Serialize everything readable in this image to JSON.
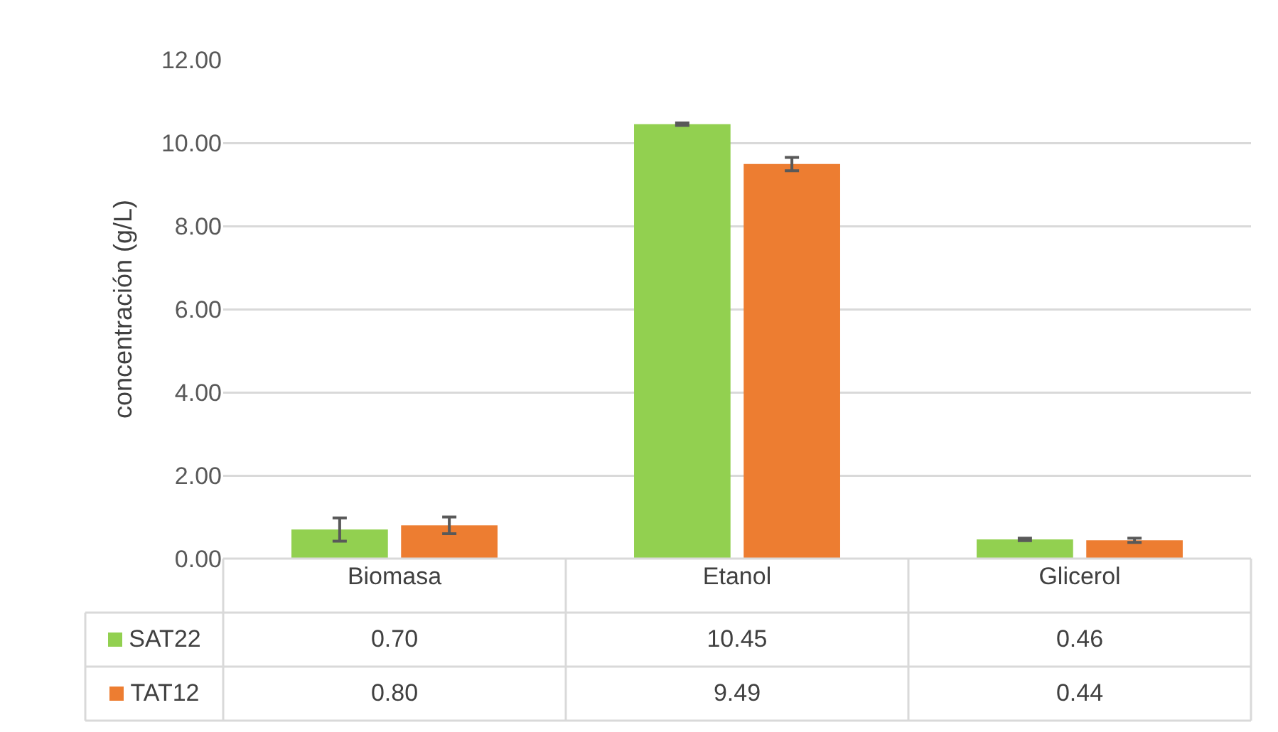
{
  "chart_data": {
    "type": "bar",
    "ylabel": "concentración (g/L)",
    "categories": [
      "Biomasa",
      "Etanol",
      "Glicerol"
    ],
    "series": [
      {
        "name": "SAT22",
        "color": "#92d050",
        "values": [
          0.7,
          10.45,
          0.46
        ],
        "errors": [
          0.28,
          0.03,
          0.03
        ],
        "value_labels": [
          "0.70",
          "10.45",
          "0.46"
        ]
      },
      {
        "name": "TAT12",
        "color": "#ed7d31",
        "values": [
          0.8,
          9.49,
          0.44
        ],
        "errors": [
          0.2,
          0.16,
          0.05
        ],
        "value_labels": [
          "0.80",
          "9.49",
          "0.44"
        ]
      }
    ],
    "ylim": [
      0,
      12
    ],
    "yticks": [
      {
        "value": 0,
        "label": "0.00"
      },
      {
        "value": 2,
        "label": "2.00"
      },
      {
        "value": 4,
        "label": "4.00"
      },
      {
        "value": 6,
        "label": "6.00"
      },
      {
        "value": 8,
        "label": "8.00"
      },
      {
        "value": 10,
        "label": "10.00"
      },
      {
        "value": 12,
        "label": "12.00"
      }
    ],
    "grid": "y",
    "legend": "bottom"
  }
}
